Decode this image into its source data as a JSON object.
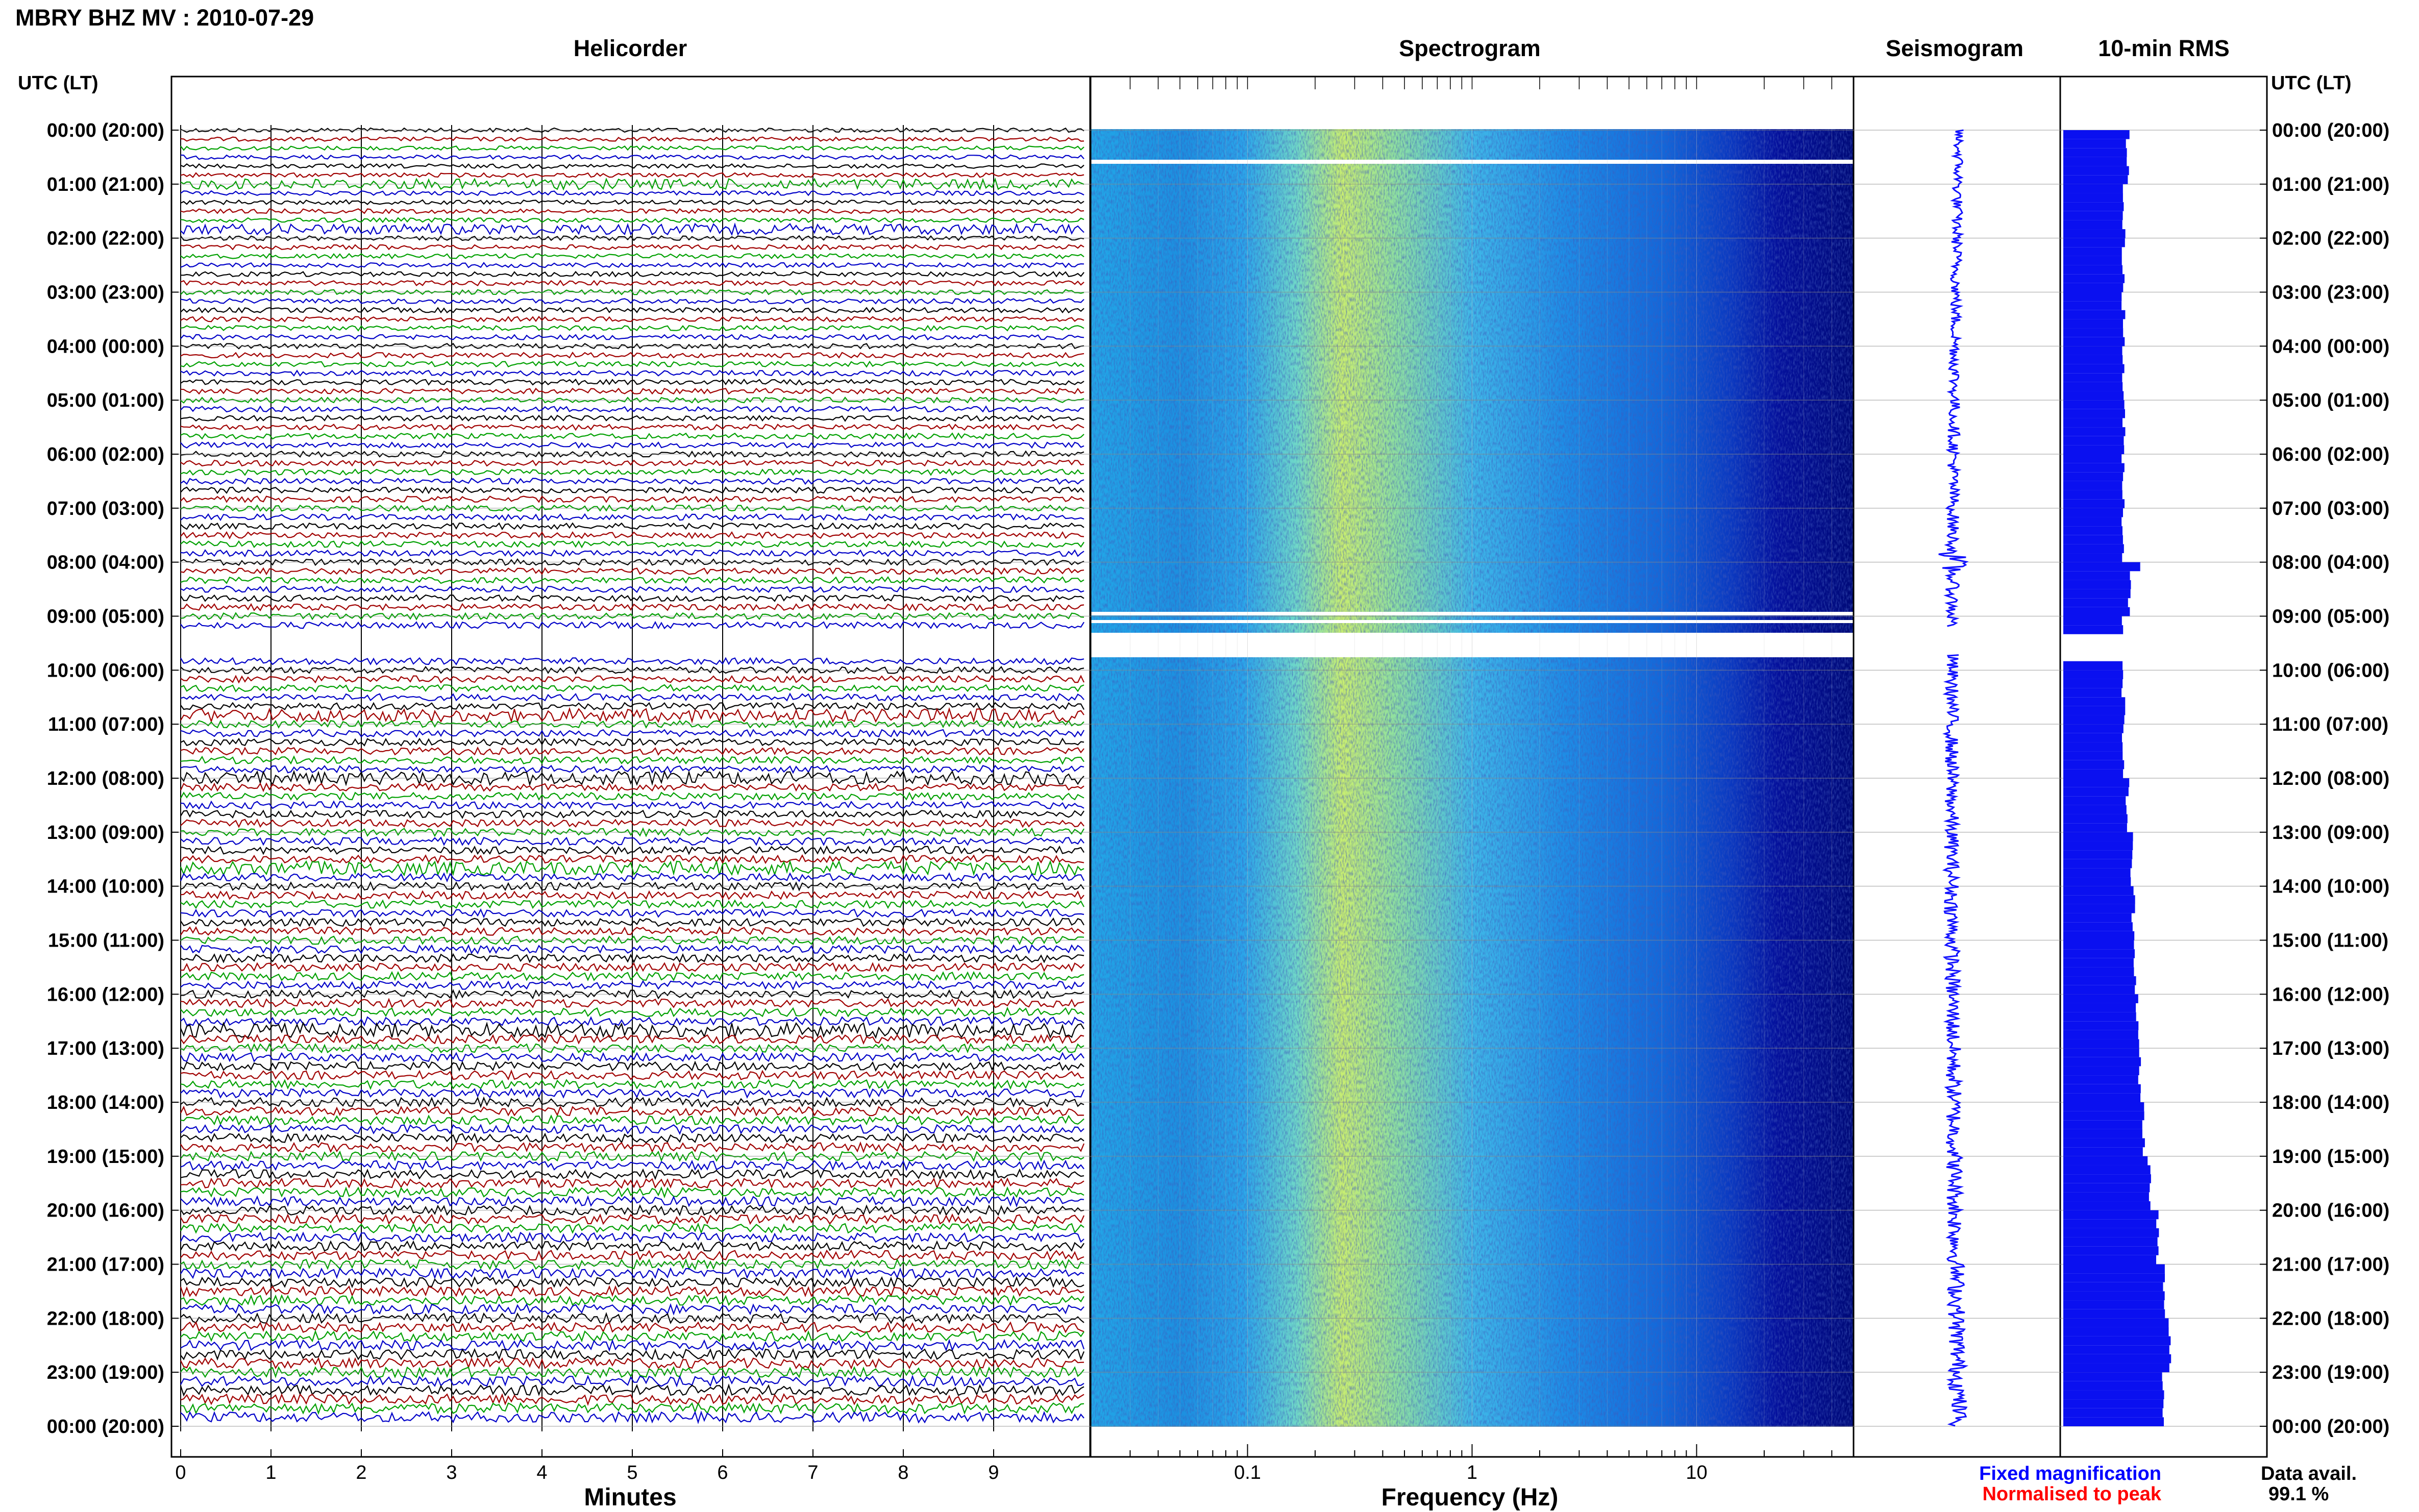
{
  "page": {
    "title": "MBRY BHZ MV : 2010-07-29",
    "time_header_left": "UTC (LT)",
    "time_header_right": "UTC (LT)"
  },
  "panels": {
    "helicorder": "Helicorder",
    "spectrogram": "Spectrogram",
    "seismogram": "Seismogram",
    "rms": "10-min RMS"
  },
  "footer": {
    "fixed_magnification": "Fixed magnification",
    "normalised_to_peak": "Normalised to peak",
    "data_avail_label": "Data avail.",
    "data_avail_value": "99.1 %"
  },
  "colors": {
    "trace_cycle": [
      "#000000",
      "#a00000",
      "#00a000",
      "#0000c8"
    ],
    "seismogram": "#1010ff",
    "rms": "#0a10f0",
    "fixed_magnification": "#0000ff",
    "normalised_to_peak": "#ff0000",
    "spectrogram_colormap": [
      "#000080",
      "#0000ff",
      "#0080ff",
      "#00ffff",
      "#80ff80",
      "#ffff00"
    ]
  },
  "chart_data": [
    {
      "type": "line",
      "panel": "helicorder",
      "title": "Helicorder",
      "xlabel": "Minutes",
      "xlim": [
        0,
        10
      ],
      "x_ticks": [
        "0",
        "1",
        "2",
        "3",
        "4",
        "5",
        "6",
        "7",
        "8",
        "9"
      ],
      "y_ticks": [
        "00:00 (20:00)",
        "01:00 (21:00)",
        "02:00 (22:00)",
        "03:00 (23:00)",
        "04:00 (00:00)",
        "05:00 (01:00)",
        "06:00 (02:00)",
        "07:00 (03:00)",
        "08:00 (04:00)",
        "09:00 (05:00)",
        "10:00 (06:00)",
        "11:00 (07:00)",
        "12:00 (08:00)",
        "13:00 (09:00)",
        "14:00 (10:00)",
        "15:00 (11:00)",
        "16:00 (12:00)",
        "17:00 (13:00)",
        "18:00 (14:00)",
        "19:00 (15:00)",
        "20:00 (16:00)",
        "21:00 (17:00)",
        "22:00 (18:00)",
        "23:00 (19:00)",
        "00:00 (20:00)"
      ],
      "lines_per_hour": 6,
      "traces": 144,
      "data_gap_utc_hours": [
        9.2,
        9.7
      ]
    },
    {
      "type": "heatmap",
      "panel": "spectrogram",
      "title": "Spectrogram",
      "xlabel": "Frequency (Hz)",
      "x_scale": "log",
      "xlim": [
        0.02,
        50
      ],
      "x_ticks": [
        "0.1",
        "1",
        "10"
      ],
      "ylim_utc_hours": [
        0,
        24
      ],
      "energy_peak_hz": [
        0.2,
        0.4
      ],
      "data_gap_utc_hours": [
        9.2,
        9.7
      ]
    },
    {
      "type": "line",
      "panel": "seismogram",
      "title": "Seismogram",
      "ylim_utc_hours": [
        0,
        24
      ]
    },
    {
      "type": "bar",
      "panel": "rms",
      "title": "10-min RMS",
      "orientation": "horizontal",
      "ylim_utc_hours": [
        0,
        24
      ],
      "hours": [
        0,
        1,
        2,
        3,
        4,
        5,
        6,
        7,
        8,
        9,
        10,
        11,
        12,
        13,
        14,
        15,
        16,
        17,
        18,
        19,
        20,
        21,
        22,
        23
      ],
      "values": [
        0.32,
        0.3,
        0.3,
        0.3,
        0.3,
        0.3,
        0.3,
        0.3,
        0.33,
        0.3,
        0.3,
        0.3,
        0.32,
        0.34,
        0.35,
        0.36,
        0.37,
        0.38,
        0.4,
        0.43,
        0.47,
        0.5,
        0.53,
        0.5
      ],
      "xlim": [
        0,
        1
      ]
    }
  ]
}
